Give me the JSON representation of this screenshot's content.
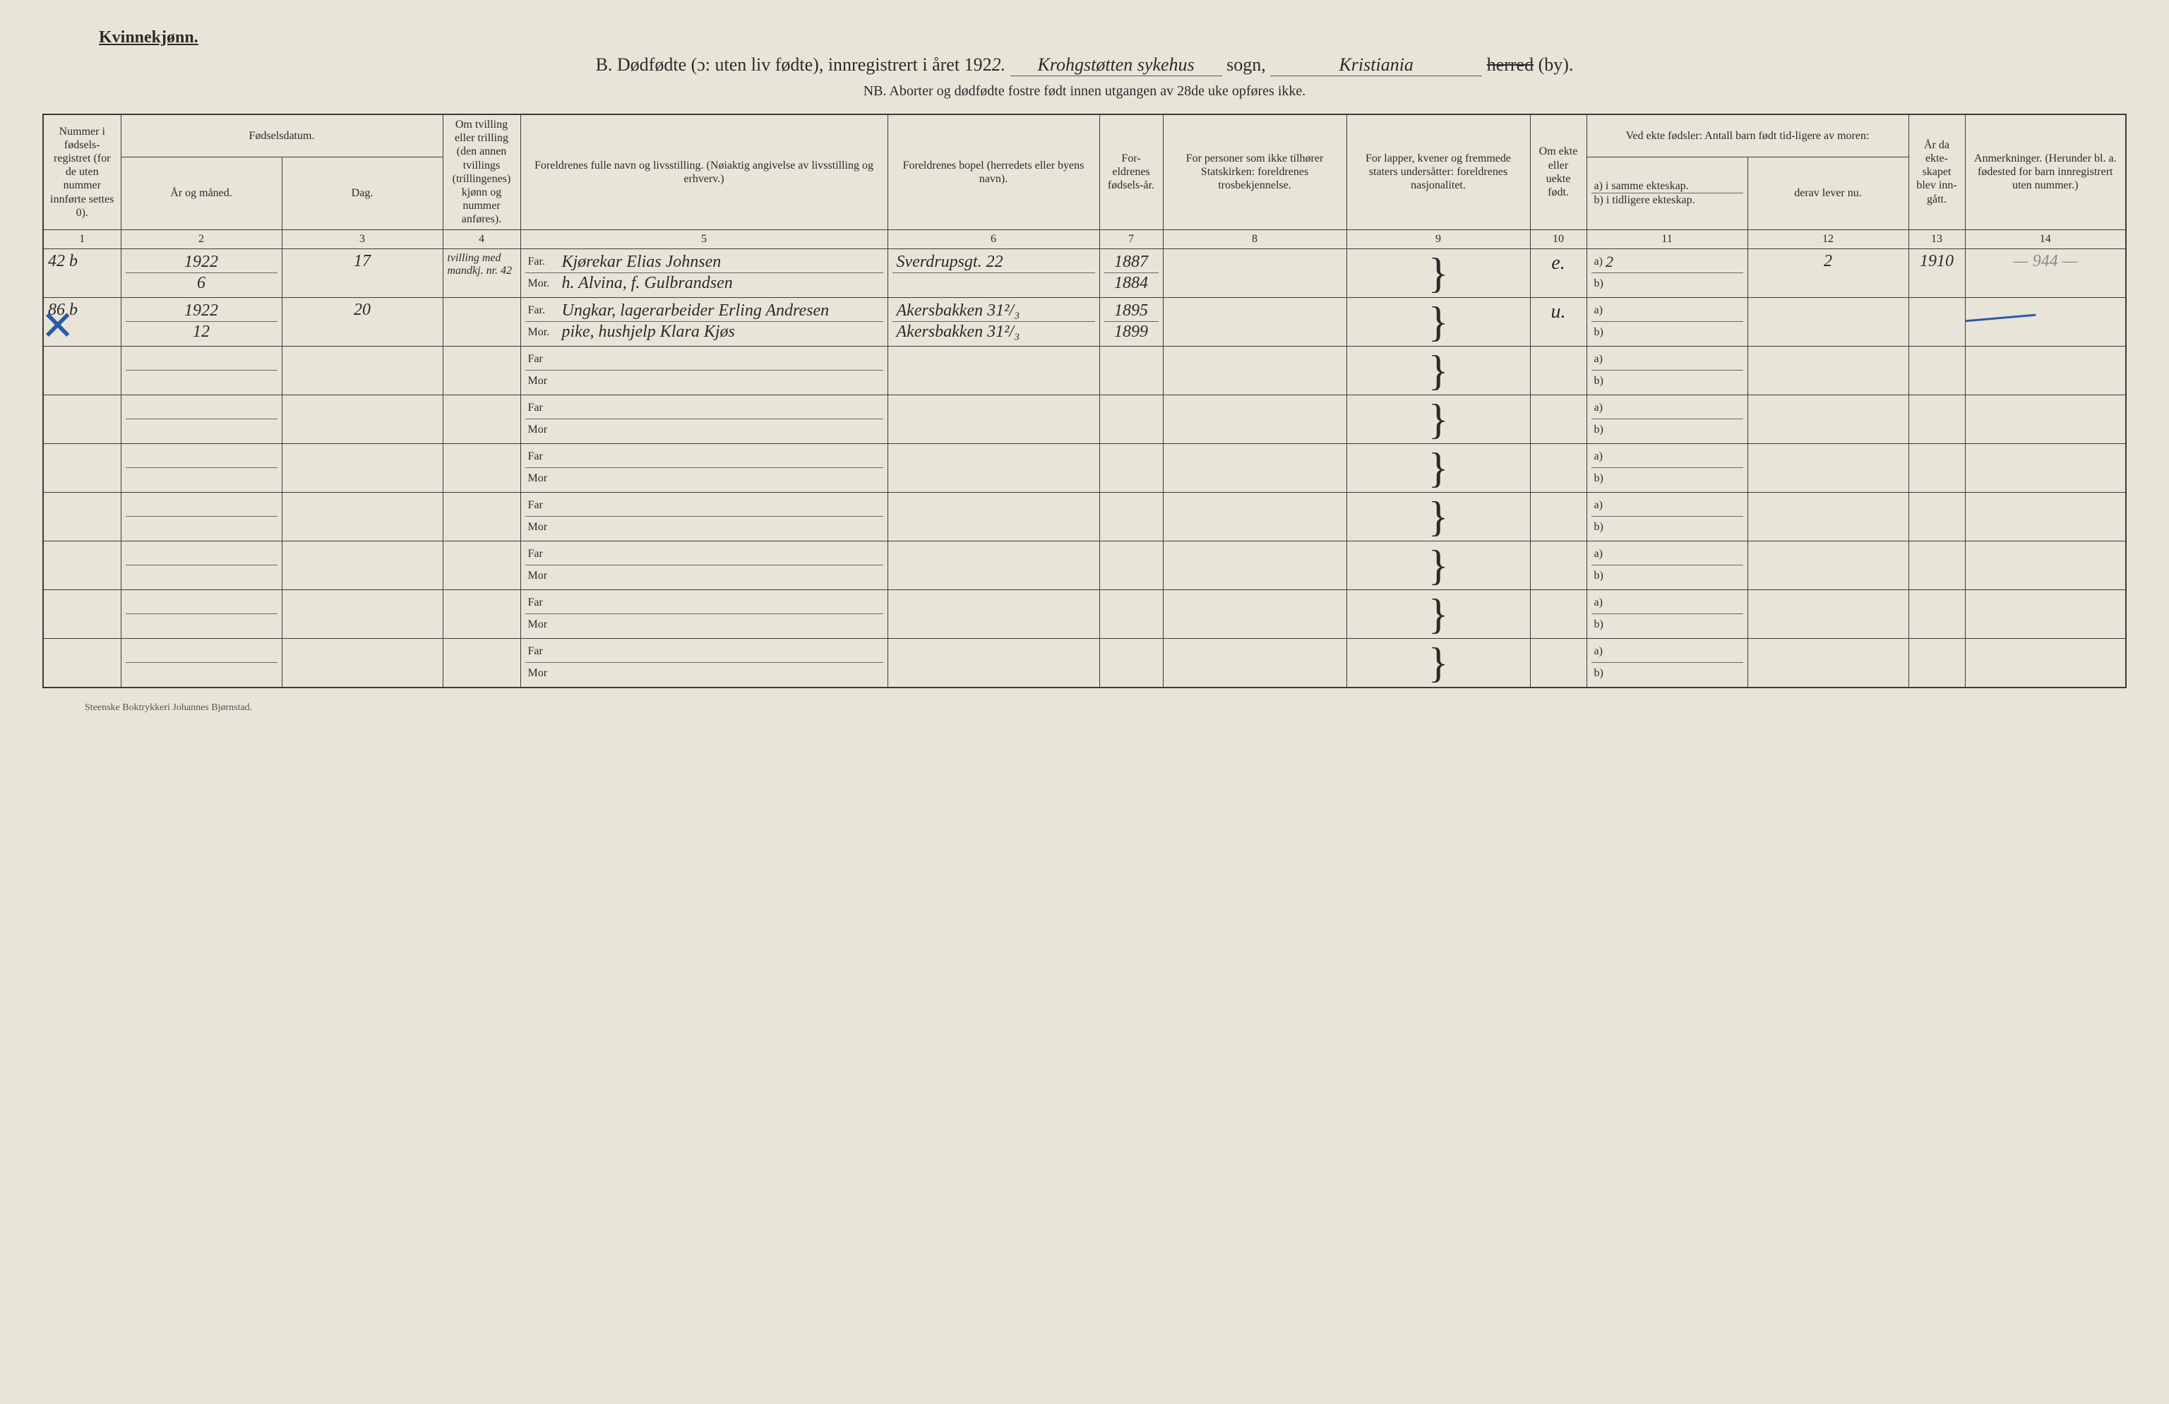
{
  "header": {
    "gender": "Kvinnekjønn.",
    "title_prefix": "B.  Dødfødte (ɔ: uten liv fødte), innregistrert i året 192",
    "year_suffix": "2.",
    "sogn_fill": "Krohgstøtten sykehus",
    "sogn_label": "sogn,",
    "by_fill": "Kristiania",
    "herred": "herred",
    "by": "(by).",
    "nb": "NB.  Aborter og dødfødte fostre født innen utgangen av 28de uke opføres ikke."
  },
  "columns": {
    "c1": "Nummer i fødsels-registret (for de uten nummer innførte settes 0).",
    "c2_top": "Fødselsdatum.",
    "c2a": "År og måned.",
    "c2b": "Dag.",
    "c4": "Om tvilling eller trilling (den annen tvillings (trillingenes) kjønn og nummer anføres).",
    "c5": "Foreldrenes fulle navn og livsstilling.\n(Nøiaktig angivelse av livsstilling og erhverv.)",
    "c6": "Foreldrenes bopel\n(herredets eller byens navn).",
    "c7": "For-eldrenes fødsels-år.",
    "c8": "For personer som ikke tilhører Statskirken: foreldrenes trosbekjennelse.",
    "c9": "For lapper, kvener og fremmede staters undersåtter: foreldrenes nasjonalitet.",
    "c10": "Om ekte eller uekte født.",
    "c11_top": "Ved ekte fødsler: Antall barn født tid-ligere av moren:",
    "c11a": "a) i samme ekteskap.",
    "c11b": "b) i tidligere ekteskap.",
    "c12": "derav lever nu.",
    "c13": "År da ekte-skapet blev inn-gått.",
    "c14": "Anmerkninger.\n(Herunder bl. a. fødested for barn innregistrert uten nummer.)"
  },
  "colnums": [
    "1",
    "2",
    "3",
    "4",
    "5",
    "6",
    "7",
    "8",
    "9",
    "10",
    "11",
    "12",
    "13",
    "14"
  ],
  "labels": {
    "far": "Far.",
    "mor": "Mor.",
    "a": "a)",
    "b": "b)"
  },
  "rows": [
    {
      "num": "42 b",
      "year": "1922",
      "month": "6",
      "day": "17",
      "twin": "tvilling med mandkj. nr. 42",
      "far": "Kjørekar Elias Johnsen",
      "mor": "h. Alvina, f. Gulbrandsen",
      "bopel_far": "Sverdrupsgt. 22",
      "bopel_mor": "",
      "fy_far": "1887",
      "fy_mor": "1884",
      "ekte": "e.",
      "a_val": "2",
      "b_val": "",
      "lever": "2",
      "aar": "1910",
      "anm": "— 944 —",
      "cross": false
    },
    {
      "num": "86 b",
      "year": "1922",
      "month": "12",
      "day": "20",
      "twin": "",
      "far": "Ungkar, lagerarbeider Erling Andresen",
      "mor": "pike, hushjelp Klara Kjøs",
      "bopel_far": "Akersbakken 31²/₃",
      "bopel_mor": "Akersbakken 31²/₃",
      "fy_far": "1895",
      "fy_mor": "1899",
      "ekte": "u.",
      "a_val": "",
      "b_val": "",
      "lever": "",
      "aar": "",
      "anm": "",
      "cross": true
    }
  ],
  "blank_rows": 7,
  "footer": "Steenske Boktrykkeri Johannes Bjørnstad.",
  "colors": {
    "paper": "#e8e5d8",
    "ink": "#2a2a2a",
    "blue": "#2a5aa8"
  }
}
